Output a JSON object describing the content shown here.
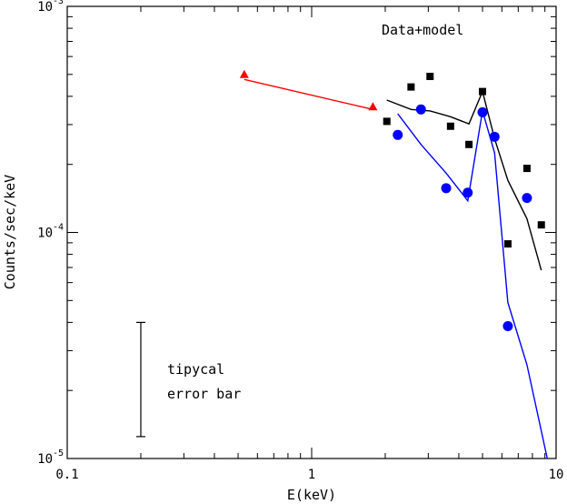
{
  "chart_data": {
    "type": "scatter",
    "xlabel": "E(keV)",
    "ylabel": "Counts/sec/keV",
    "xscale": "log",
    "yscale": "log",
    "xlim": [
      0.1,
      10
    ],
    "ylim": [
      1e-05,
      0.001
    ],
    "x_ticks": [
      {
        "value": 0.1,
        "label": "0.1"
      },
      {
        "value": 1,
        "label": "1"
      },
      {
        "value": 10,
        "label": "10"
      }
    ],
    "y_ticks": [
      {
        "value": 1e-05,
        "base": "10",
        "exp": "-5"
      },
      {
        "value": 0.0001,
        "base": "10",
        "exp": "-4"
      },
      {
        "value": 0.001,
        "base": "10",
        "exp": "-3"
      }
    ],
    "annotations": {
      "legend_text": "Data+model",
      "errorbar_line1": "tipycal",
      "errorbar_line2": "error bar"
    },
    "error_bar": {
      "x": 0.2,
      "y_low": 1.25e-05,
      "y_high": 4e-05
    },
    "series": [
      {
        "color": "#ff0000",
        "marker": "triangle",
        "points": [
          [
            0.53,
            0.0005
          ],
          [
            1.78,
            0.00036
          ]
        ],
        "model": [
          [
            0.53,
            0.000475
          ],
          [
            1.78,
            0.00035
          ]
        ]
      },
      {
        "color": "#000000",
        "marker": "square",
        "points": [
          [
            2.03,
            0.00031
          ],
          [
            2.55,
            0.00044
          ],
          [
            3.05,
            0.00049
          ],
          [
            3.7,
            0.000295
          ],
          [
            4.4,
            0.000245
          ],
          [
            5.0,
            0.00042
          ],
          [
            5.6,
            0.000265
          ],
          [
            6.35,
            8.9e-05
          ],
          [
            7.6,
            0.000192
          ],
          [
            8.7,
            0.000108
          ]
        ],
        "model": [
          [
            2.03,
            0.000385
          ],
          [
            2.55,
            0.00035
          ],
          [
            3.05,
            0.000345
          ],
          [
            3.7,
            0.000325
          ],
          [
            4.4,
            0.000302
          ],
          [
            5.0,
            0.00042
          ],
          [
            5.6,
            0.00026
          ],
          [
            6.35,
            0.00017
          ],
          [
            7.6,
            0.000115
          ],
          [
            8.7,
            6.8e-05
          ]
        ]
      },
      {
        "color": "#0000ff",
        "marker": "circle",
        "points": [
          [
            2.25,
            0.00027
          ],
          [
            2.8,
            0.00035
          ],
          [
            3.55,
            0.000157
          ],
          [
            4.35,
            0.00015
          ],
          [
            5.0,
            0.00034
          ],
          [
            5.6,
            0.000265
          ],
          [
            6.35,
            3.85e-05
          ],
          [
            7.6,
            0.000142
          ]
        ],
        "model": [
          [
            2.25,
            0.000335
          ],
          [
            2.8,
            0.000245
          ],
          [
            3.55,
            0.000183
          ],
          [
            4.35,
            0.000138
          ],
          [
            5.0,
            0.000345
          ],
          [
            5.6,
            0.000225
          ],
          [
            6.35,
            4.9e-05
          ],
          [
            7.6,
            2.6e-05
          ],
          [
            9.2,
            1e-05
          ]
        ]
      }
    ]
  }
}
